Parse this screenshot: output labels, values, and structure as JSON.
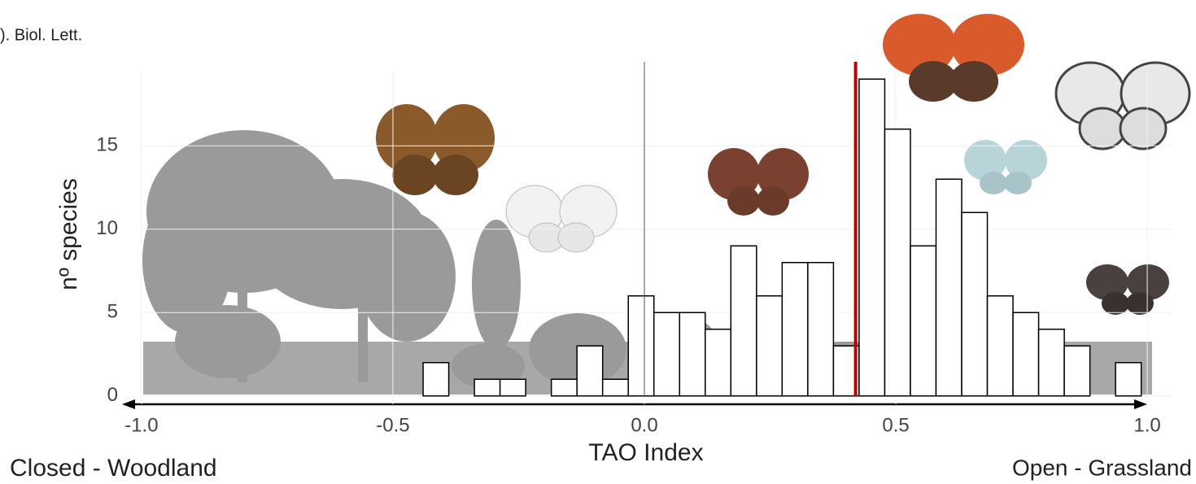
{
  "chart_data": {
    "type": "histogram",
    "source_note": "). Biol. Lett.",
    "xlabel": "TAO Index",
    "ylabel": "nº species",
    "left_label": "Closed - Woodland",
    "right_label": "Open - Grassland",
    "bins": [
      -0.44,
      -0.389,
      -0.338,
      -0.287,
      -0.236,
      -0.185,
      -0.134,
      -0.083,
      -0.032,
      0.019,
      0.07,
      0.121,
      0.172,
      0.223,
      0.274,
      0.325,
      0.376,
      0.427,
      0.478,
      0.529,
      0.58,
      0.631,
      0.682,
      0.733,
      0.784,
      0.835,
      0.886,
      0.937,
      0.988
    ],
    "values": [
      2,
      0,
      1,
      1,
      0,
      1,
      3,
      1,
      6,
      5,
      5,
      4,
      9,
      6,
      8,
      8,
      3,
      19,
      16,
      9,
      13,
      11,
      6,
      5,
      4,
      3,
      0,
      2
    ],
    "color": "#ffffff",
    "edge_color": "#000000",
    "vlines": [
      {
        "value": 0,
        "color": "#555555"
      },
      {
        "value": 0.42,
        "color": "#c00000"
      }
    ],
    "xlim": [
      -1.05,
      1.05
    ],
    "xticks": [
      {
        "value": -1,
        "label": "-1.0"
      },
      {
        "value": -0.5,
        "label": "-0.5"
      },
      {
        "value": 0,
        "label": "0.0"
      },
      {
        "value": 0.5,
        "label": "0.5"
      },
      {
        "value": 1,
        "label": "1.0"
      }
    ],
    "ylim": [
      -0.5,
      19.5
    ],
    "yticks": [
      0,
      5,
      10,
      15
    ],
    "grid": true
  }
}
